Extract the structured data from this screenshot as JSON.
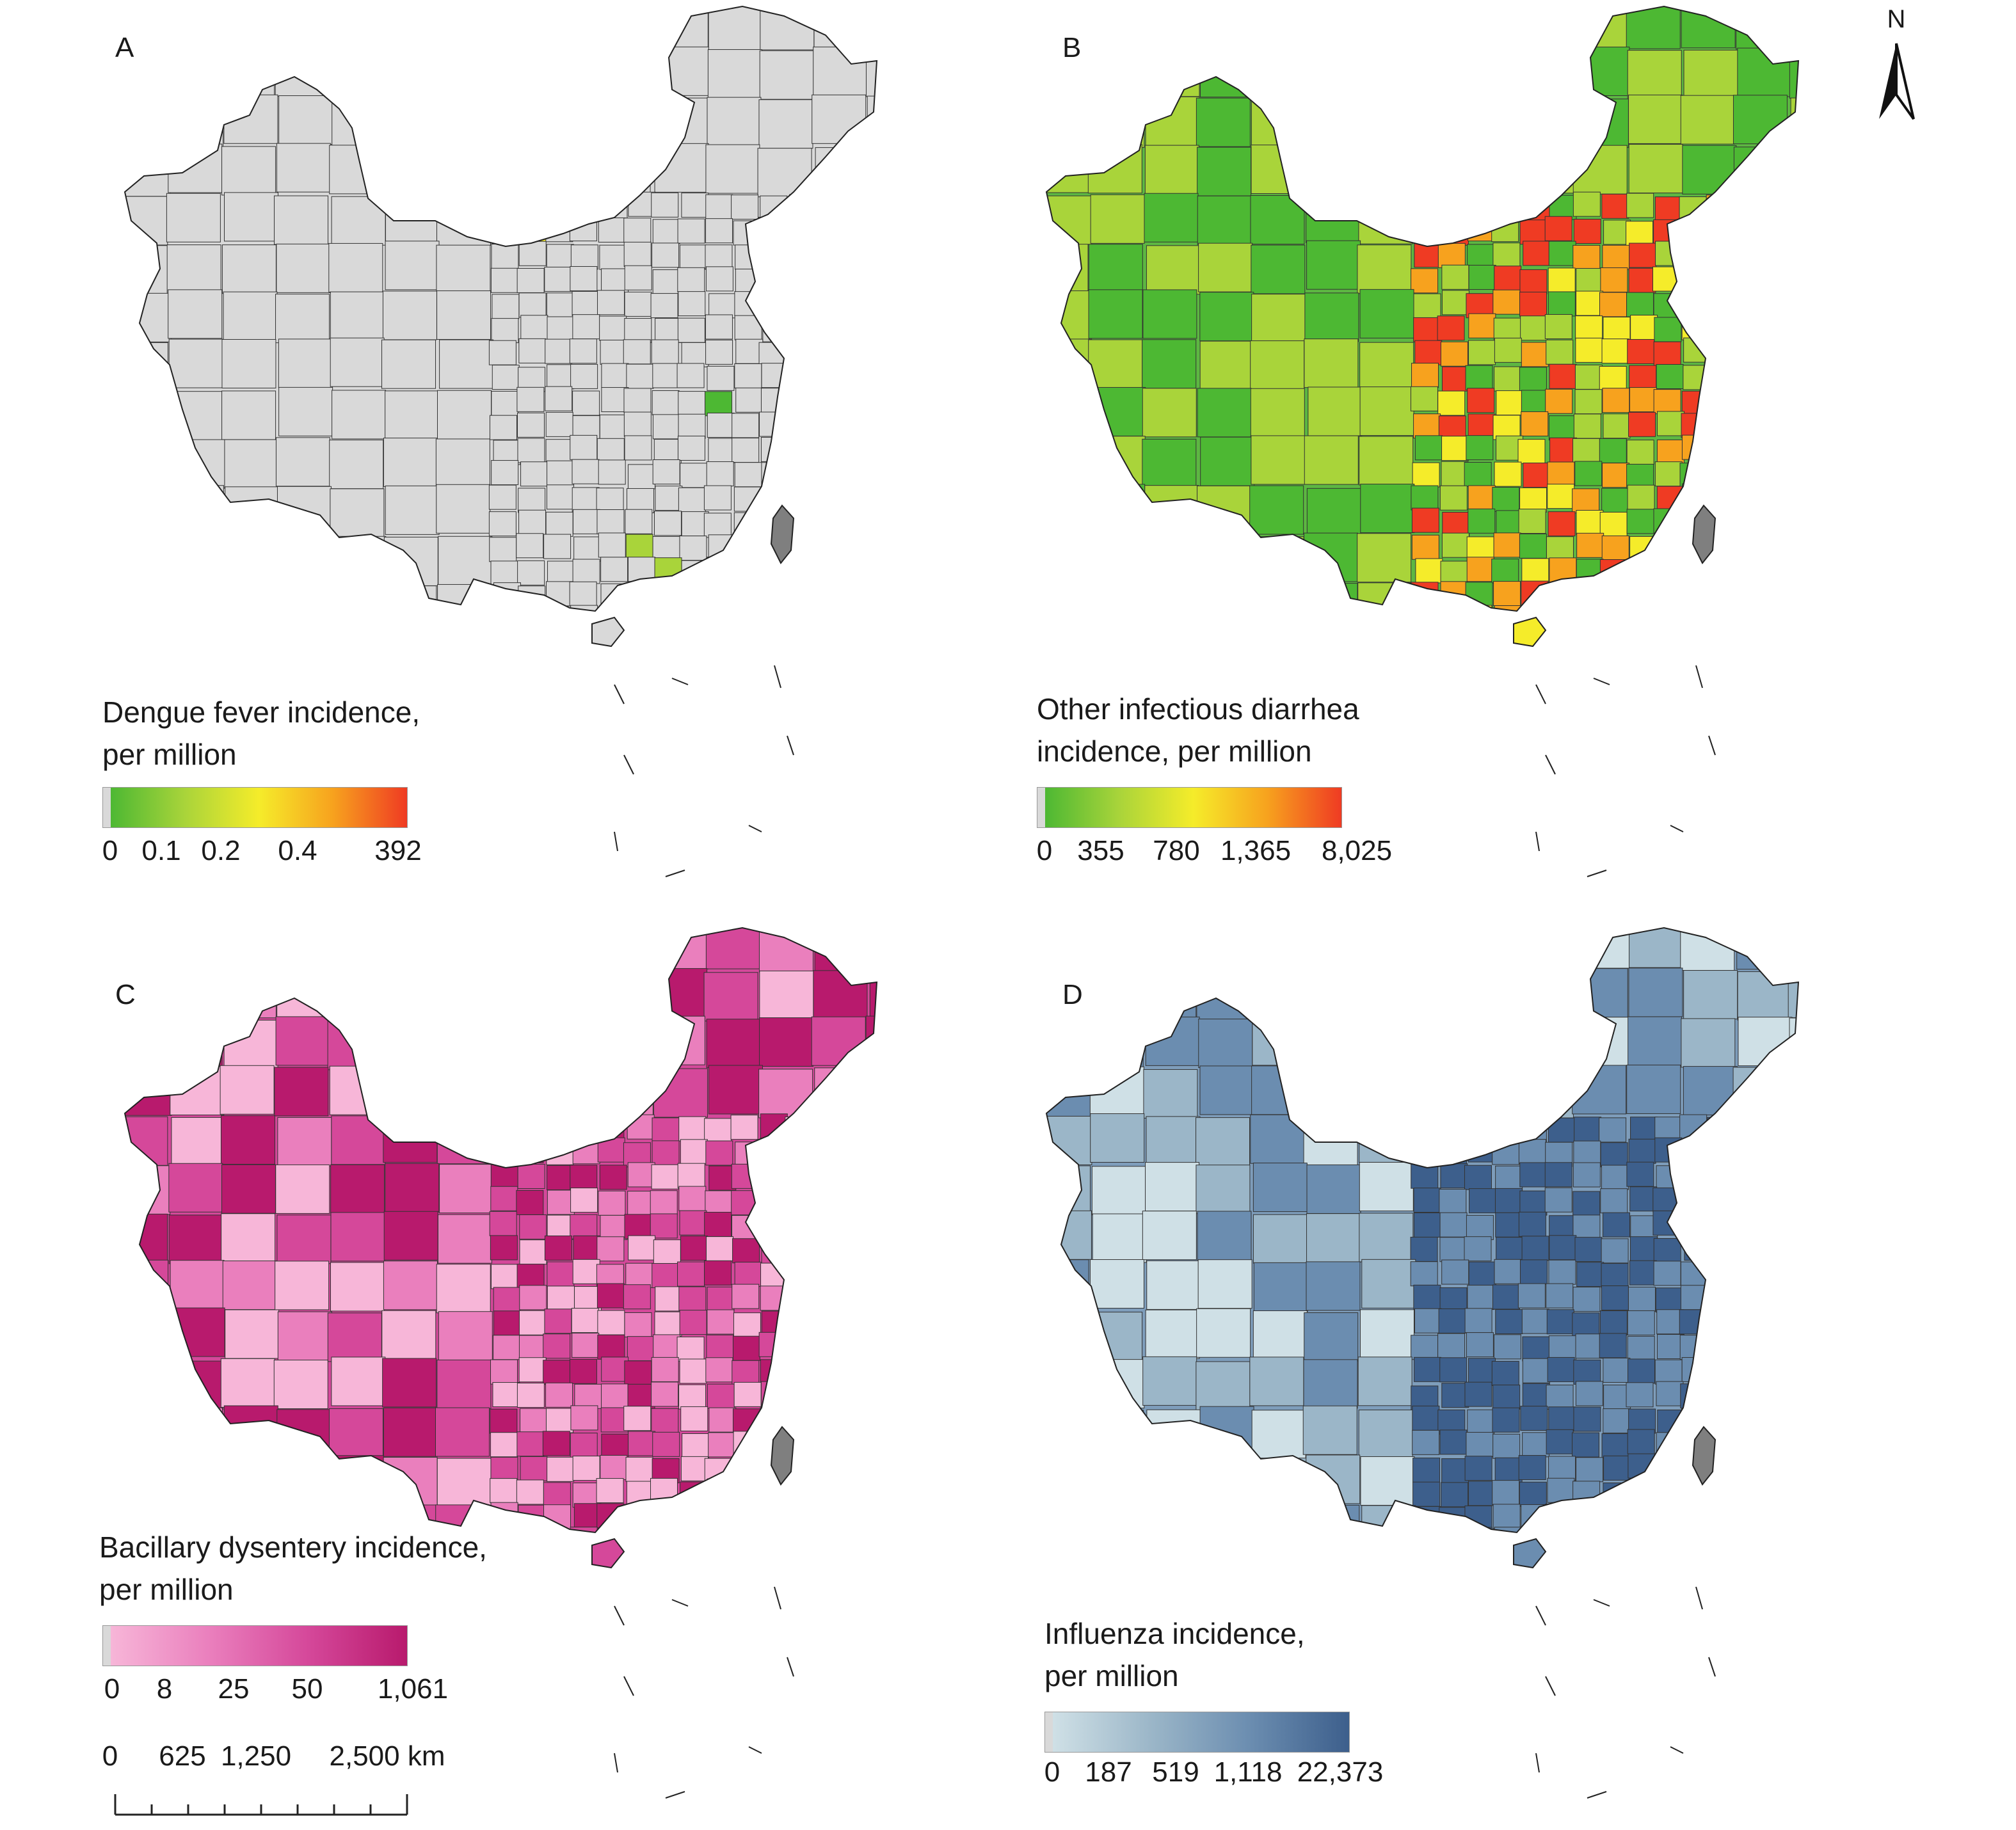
{
  "panels": [
    {
      "letter": "A",
      "legend_title_line1": "Dengue fever incidence,",
      "legend_title_line2": "per million",
      "ticks": [
        "0",
        "0.1",
        "0.2",
        "0.4",
        "392"
      ],
      "ramp": [
        "#d9d9d9",
        "#4db833",
        "#a9d43a",
        "#f5ec2a",
        "#f7a21e",
        "#ef3b23"
      ],
      "base_fill": "#d9d9d9"
    },
    {
      "letter": "B",
      "legend_title_line1": "Other infectious diarrhea",
      "legend_title_line2": "incidence, per million",
      "ticks": [
        "0",
        "355",
        "780",
        "1,365",
        "8,025"
      ],
      "ramp": [
        "#d9d9d9",
        "#4db833",
        "#a9d43a",
        "#f5ec2a",
        "#f7a21e",
        "#ef3b23"
      ],
      "base_fill": "#5db742"
    },
    {
      "letter": "C",
      "legend_title_line1": "Bacillary dysentery incidence,",
      "legend_title_line2": "per million",
      "ticks": [
        "0",
        "8",
        "25",
        "50",
        "1,061"
      ],
      "ramp": [
        "#d9d9d9",
        "#f7b6d8",
        "#ea7fbd",
        "#d5489a",
        "#b81a6d"
      ],
      "base_fill": "#d4489a"
    },
    {
      "letter": "D",
      "legend_title_line1": "Influenza incidence,",
      "legend_title_line2": "per million",
      "ticks": [
        "0",
        "187",
        "519",
        "1,118",
        "22,373"
      ],
      "ramp": [
        "#d9d9d9",
        "#cfe0e6",
        "#9bb6c8",
        "#6b8db0",
        "#3d5f8c"
      ],
      "base_fill": "#7e9dbb"
    }
  ],
  "north_label": "N",
  "scale": {
    "labels": [
      "0",
      "625",
      "1,250",
      "2,500 km"
    ]
  }
}
